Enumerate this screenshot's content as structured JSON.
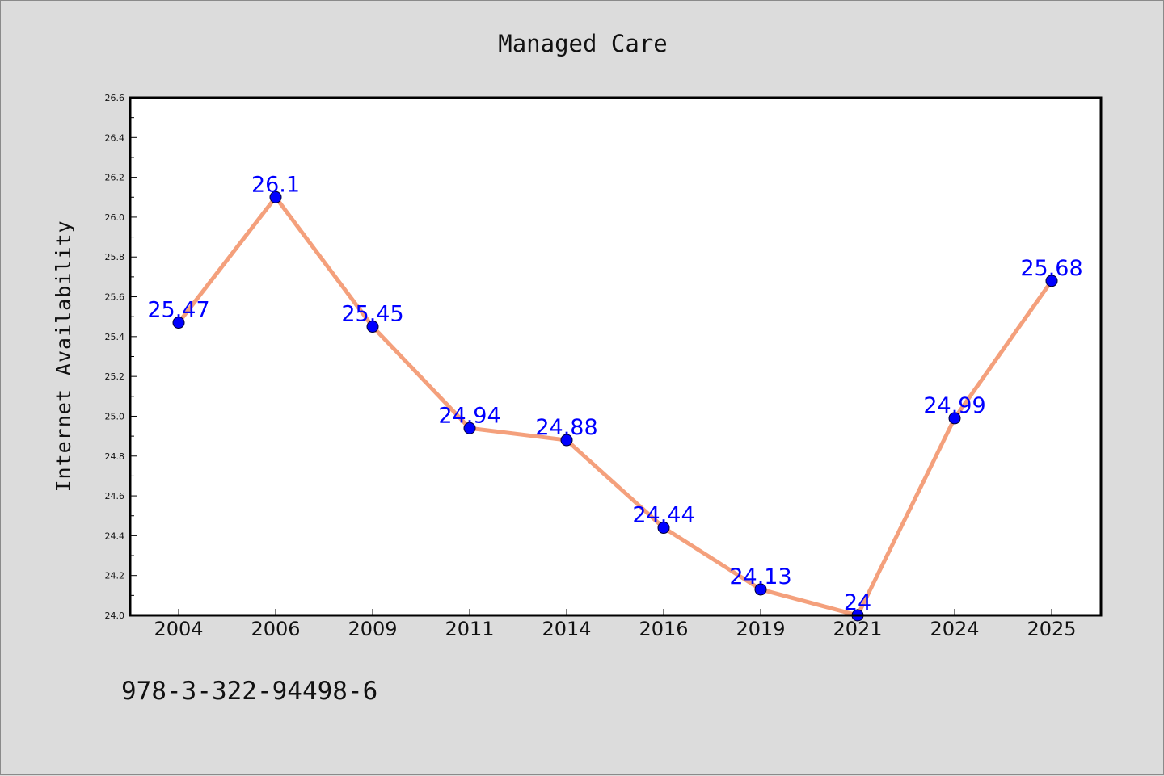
{
  "chart_data": {
    "type": "line",
    "title": "Managed Care",
    "xlabel": "",
    "ylabel": "Internet Availability",
    "categories": [
      "2004",
      "2006",
      "2009",
      "2011",
      "2014",
      "2016",
      "2019",
      "2021",
      "2024",
      "2025"
    ],
    "series": [
      {
        "values": [
          25.47,
          26.1,
          25.45,
          24.94,
          24.88,
          24.44,
          24.13,
          24,
          24.99,
          25.68
        ],
        "data_labels": [
          "25.47",
          "26.1",
          "25.45",
          "24.94",
          "24.88",
          "24.44",
          "24.13",
          "24",
          "24.99",
          "25.68"
        ]
      }
    ],
    "ylim": [
      24.0,
      26.6
    ],
    "yticks": [
      "24.0",
      "24.2",
      "24.4",
      "24.6",
      "24.8",
      "25.0",
      "25.2",
      "25.4",
      "25.6",
      "25.8",
      "26.0",
      "26.2",
      "26.4",
      "26.6"
    ],
    "grid": false,
    "legend": "none",
    "colors": {
      "line": "#f4a07c",
      "marker": "#0000ff",
      "data_label": "#0000ff",
      "background": "#dcdcdc",
      "plot_background": "#ffffff"
    }
  },
  "footer": {
    "text": "978-3-322-94498-6"
  }
}
